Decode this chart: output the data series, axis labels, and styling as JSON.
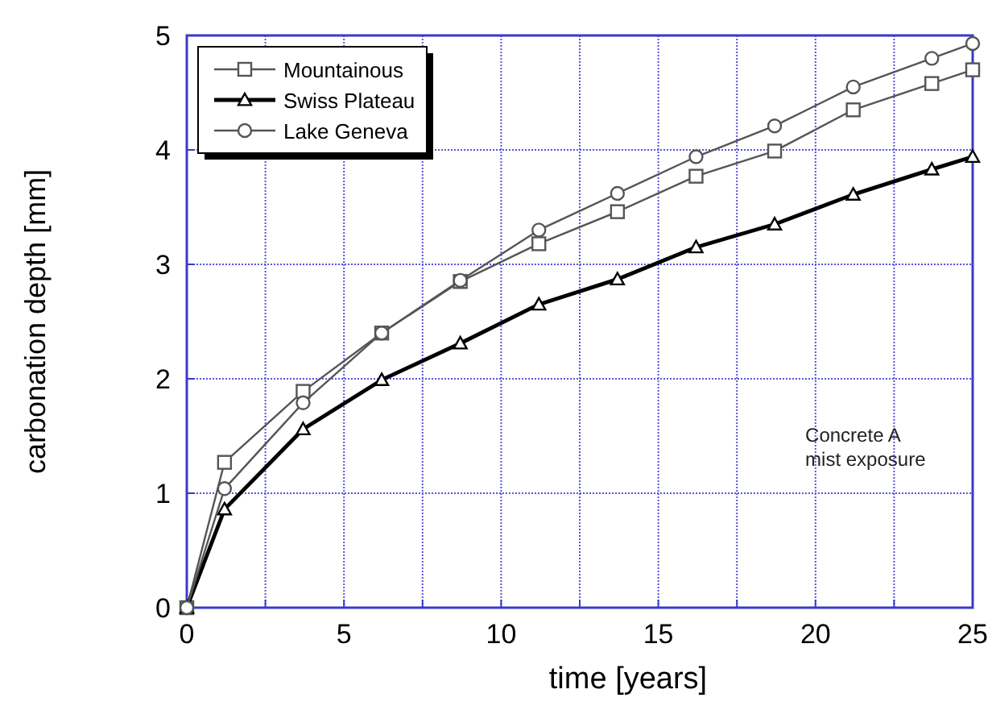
{
  "chart_data": {
    "type": "line",
    "xlabel": "time [years]",
    "ylabel": "carbonation depth [mm]",
    "x": [
      0,
      1.2,
      3.7,
      6.2,
      8.7,
      11.2,
      13.7,
      16.2,
      18.7,
      21.2,
      23.7,
      25
    ],
    "series": [
      {
        "name": "Mountainous",
        "color": "#555555",
        "marker": "square",
        "values": [
          0,
          1.27,
          1.89,
          2.4,
          2.85,
          3.18,
          3.46,
          3.77,
          3.99,
          4.35,
          4.58,
          4.7
        ]
      },
      {
        "name": "Swiss Plateau",
        "color": "#000000",
        "marker": "triangle",
        "values": [
          0,
          0.86,
          1.56,
          1.99,
          2.31,
          2.65,
          2.87,
          3.15,
          3.35,
          3.61,
          3.83,
          3.94
        ]
      },
      {
        "name": "Lake Geneva",
        "color": "#555555",
        "marker": "circle",
        "values": [
          0,
          1.04,
          1.79,
          2.4,
          2.86,
          3.3,
          3.62,
          3.94,
          4.21,
          4.55,
          4.8,
          4.93
        ]
      }
    ],
    "xlim": [
      0,
      25
    ],
    "xticks": [
      0,
      {
        "value": 2.5,
        "label": null
      },
      5,
      {
        "value": 7.5,
        "label": null
      },
      10,
      {
        "value": 12.5,
        "label": null
      },
      15,
      {
        "value": 17.5,
        "label": null
      },
      20,
      {
        "value": 22.5,
        "label": null
      },
      25
    ],
    "ylim": [
      0,
      5
    ],
    "yticks": [
      0,
      1,
      2,
      3,
      4,
      5
    ],
    "grid": true,
    "legend": "top left",
    "line_style": "solid",
    "annotations": [
      "Concrete A\nmist exposure"
    ]
  }
}
